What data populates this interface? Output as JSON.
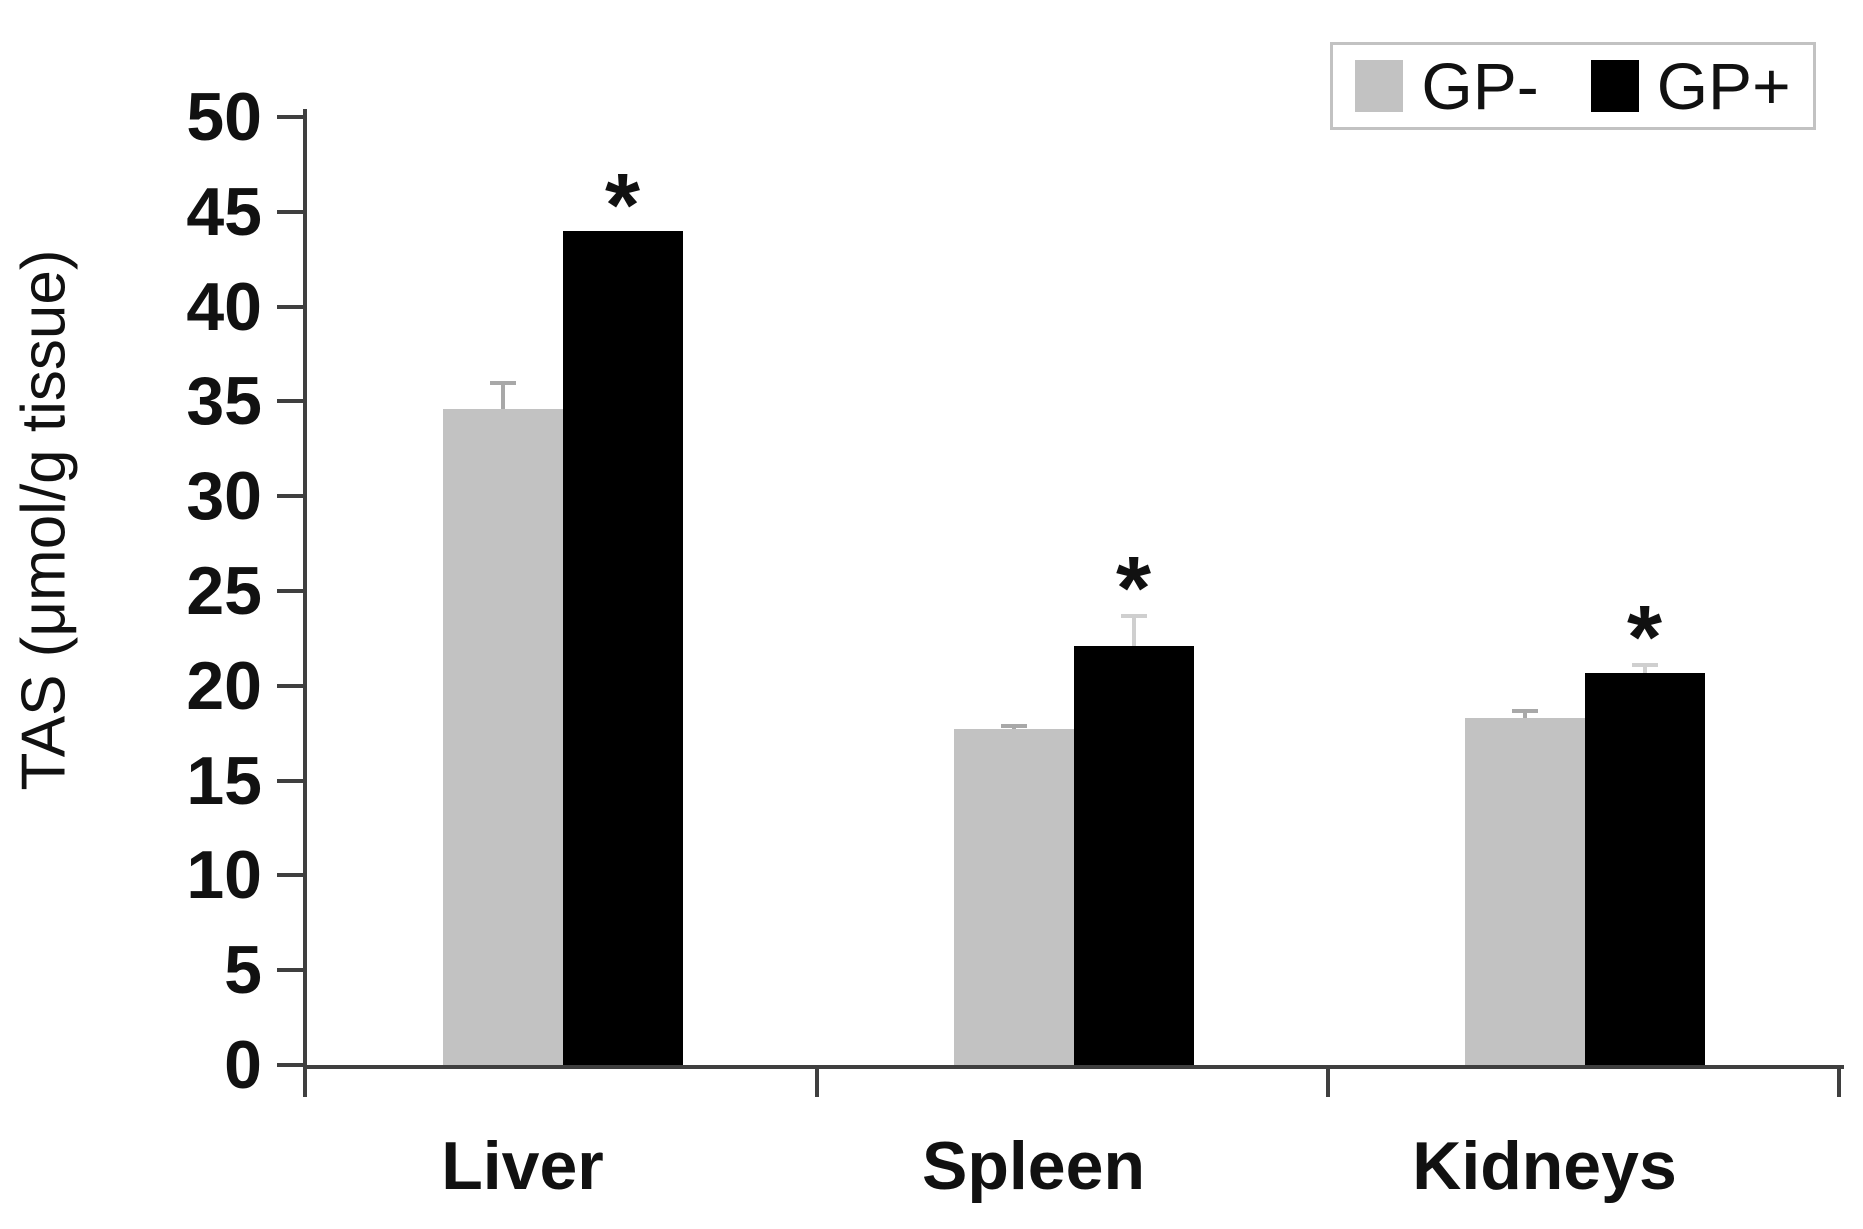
{
  "chart_data": {
    "type": "bar",
    "title": "",
    "ylabel": "TAS (μmol/g tissue)",
    "xlabel": "",
    "ylim": [
      0,
      50
    ],
    "ytick_step": 5,
    "yticks": [
      0,
      5,
      10,
      15,
      20,
      25,
      30,
      35,
      40,
      45,
      50
    ],
    "categories": [
      "Liver",
      "Spleen",
      "Kidneys"
    ],
    "series": [
      {
        "name": "GP-",
        "color": "#c2c2c2",
        "error_color": "#a8a8a8",
        "values": [
          34.6,
          17.7,
          18.3
        ],
        "errors": [
          1.5,
          0.3,
          0.5
        ],
        "significance": [
          "",
          "",
          ""
        ]
      },
      {
        "name": "GP+",
        "color": "#000000",
        "error_color": "#cfcfcf",
        "values": [
          44.0,
          22.1,
          20.7
        ],
        "errors": [
          0,
          1.7,
          0.5
        ],
        "significance": [
          "*",
          "*",
          "*"
        ]
      }
    ],
    "legend_position": "top-right",
    "grid": false,
    "axis_color": "#3f3f3f",
    "text_color": "#111111",
    "significance_marker": "*"
  },
  "legend": {
    "items": [
      {
        "label": "GP-",
        "color": "#c2c2c2"
      },
      {
        "label": "GP+",
        "color": "#000000"
      }
    ]
  }
}
